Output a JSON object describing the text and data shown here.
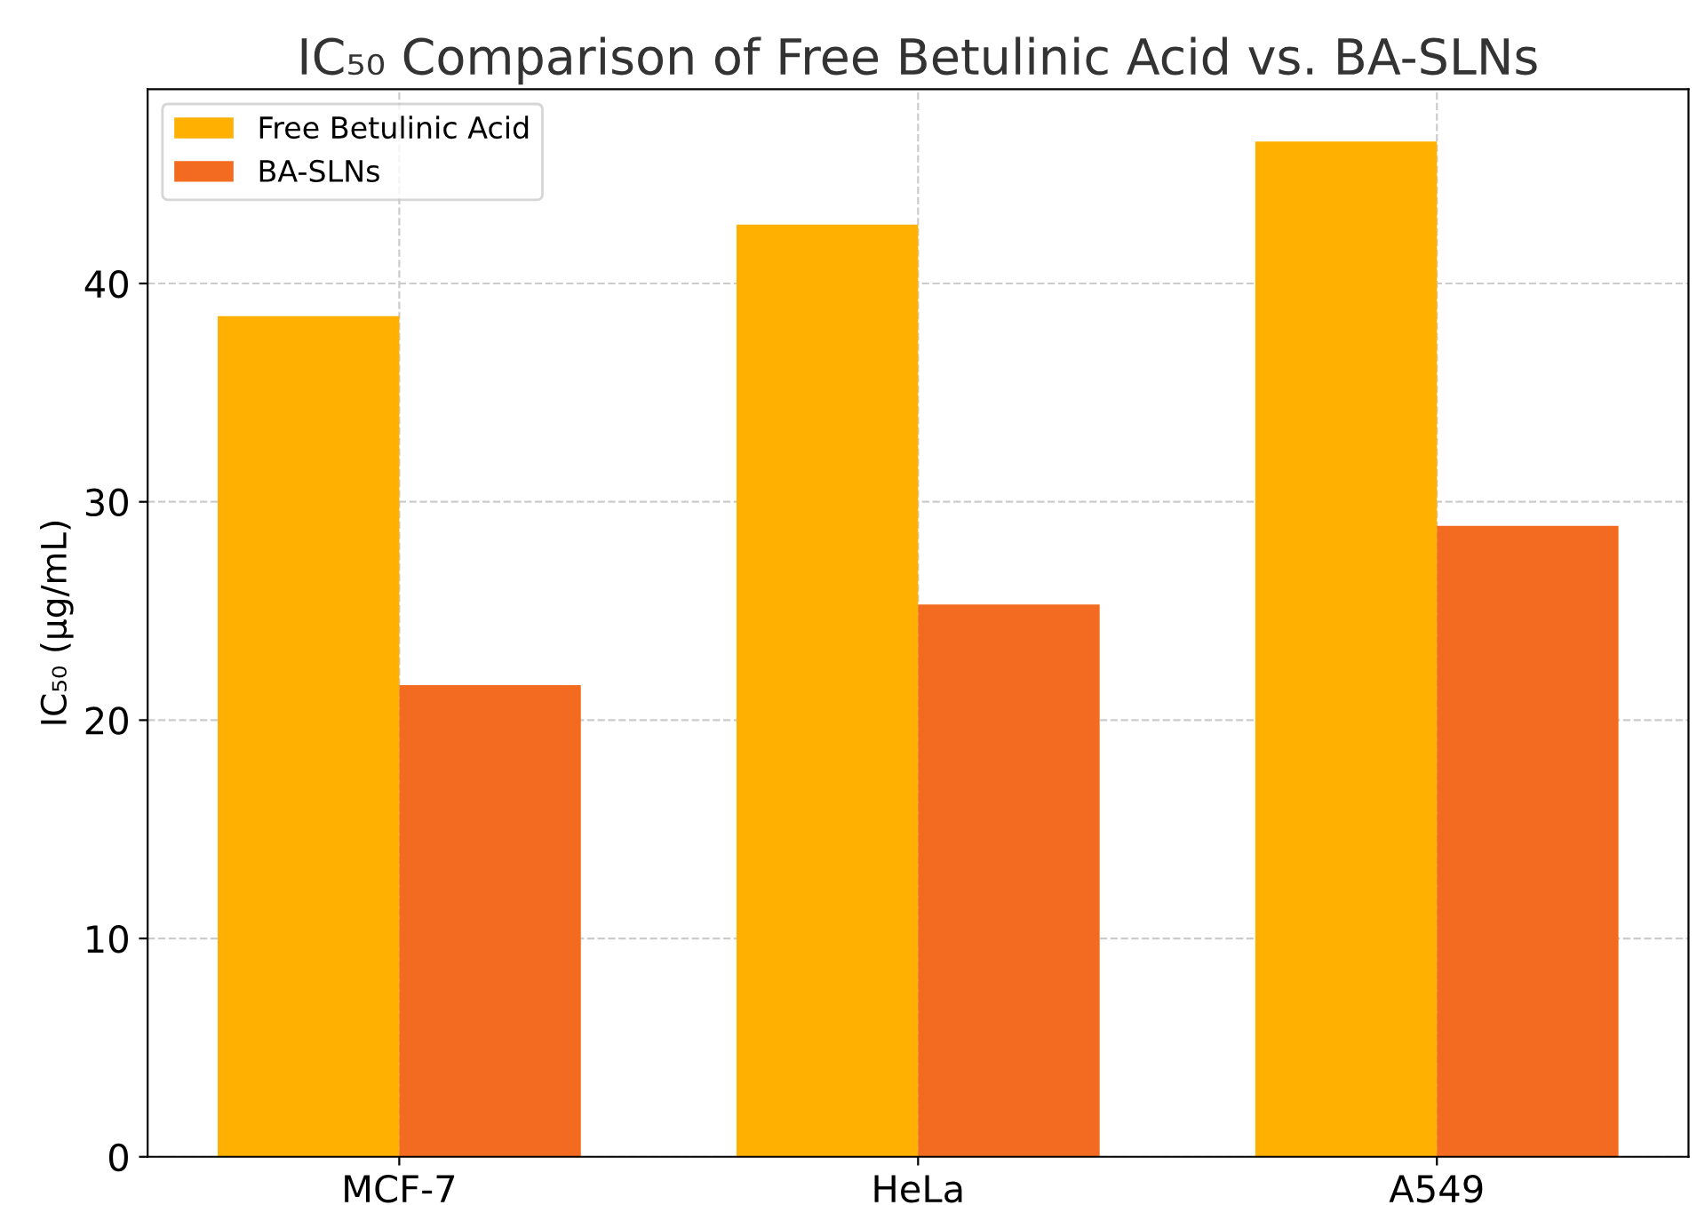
{
  "chart_data": {
    "type": "bar",
    "title": "IC₅₀ Comparison of Free Betulinic Acid vs. BA-SLNs",
    "ylabel": "IC₅₀ (µg/mL)",
    "categories": [
      "MCF-7",
      "HeLa",
      "A549"
    ],
    "series": [
      {
        "name": "Free Betulinic Acid",
        "color": "#ffb000",
        "values": [
          38.5,
          42.7,
          46.5
        ]
      },
      {
        "name": "BA-SLNs",
        "color": "#f26b21",
        "values": [
          21.6,
          25.3,
          28.9
        ]
      }
    ],
    "ylim": [
      0,
      48.9
    ],
    "yticks": [
      0,
      10,
      20,
      30,
      40
    ],
    "grid": true,
    "legend": "top left"
  }
}
